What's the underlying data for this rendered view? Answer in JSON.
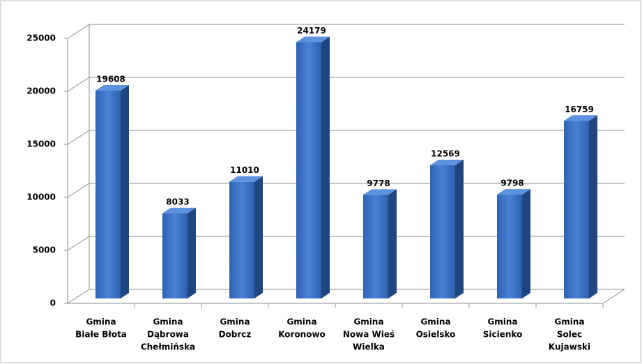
{
  "chart_data": {
    "type": "bar3d",
    "categories": [
      [
        "Gmina",
        "Białe  Błota"
      ],
      [
        "Gmina",
        "Dąbrowa",
        "Chełmińska"
      ],
      [
        "Gmina",
        "Dobrcz"
      ],
      [
        "Gmina",
        "Koronowo"
      ],
      [
        "Gmina",
        "Nowa Wieś",
        "Wielka"
      ],
      [
        "Gmina",
        "Osielsko"
      ],
      [
        "Gmina",
        "Sicienko"
      ],
      [
        "Gmina",
        "Solec",
        "Kujawski"
      ]
    ],
    "values": [
      19608,
      8033,
      11010,
      24179,
      9778,
      12569,
      9798,
      16759
    ],
    "color": "#3a6fc2",
    "ylim": [
      0,
      25000
    ],
    "yticks": [
      0,
      5000,
      10000,
      15000,
      20000,
      25000
    ],
    "grid": true
  }
}
